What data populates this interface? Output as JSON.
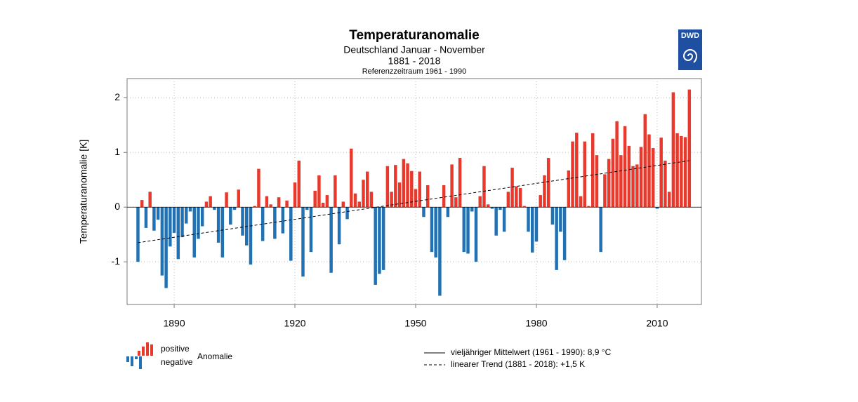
{
  "chart_data": {
    "type": "bar",
    "title": "Temperaturanomalie",
    "subtitle": "Deutschland Januar - November",
    "period": "1881 - 2018",
    "reference": "Referenzzeitraum 1961 - 1990",
    "logo": "DWD",
    "ylabel": "Temperaturanomalie [K]",
    "x": [
      1881,
      1882,
      1883,
      1884,
      1885,
      1886,
      1887,
      1888,
      1889,
      1890,
      1891,
      1892,
      1893,
      1894,
      1895,
      1896,
      1897,
      1898,
      1899,
      1900,
      1901,
      1902,
      1903,
      1904,
      1905,
      1906,
      1907,
      1908,
      1909,
      1910,
      1911,
      1912,
      1913,
      1914,
      1915,
      1916,
      1917,
      1918,
      1919,
      1920,
      1921,
      1922,
      1923,
      1924,
      1925,
      1926,
      1927,
      1928,
      1929,
      1930,
      1931,
      1932,
      1933,
      1934,
      1935,
      1936,
      1937,
      1938,
      1939,
      1940,
      1941,
      1942,
      1943,
      1944,
      1945,
      1946,
      1947,
      1948,
      1949,
      1950,
      1951,
      1952,
      1953,
      1954,
      1955,
      1956,
      1957,
      1958,
      1959,
      1960,
      1961,
      1962,
      1963,
      1964,
      1965,
      1966,
      1967,
      1968,
      1969,
      1970,
      1971,
      1972,
      1973,
      1974,
      1975,
      1976,
      1977,
      1978,
      1979,
      1980,
      1981,
      1982,
      1983,
      1984,
      1985,
      1986,
      1987,
      1988,
      1989,
      1990,
      1991,
      1992,
      1993,
      1994,
      1995,
      1996,
      1997,
      1998,
      1999,
      2000,
      2001,
      2002,
      2003,
      2004,
      2005,
      2006,
      2007,
      2008,
      2009,
      2010,
      2011,
      2012,
      2013,
      2014,
      2015,
      2016,
      2017,
      2018
    ],
    "values": [
      -1.0,
      0.13,
      -0.38,
      0.28,
      -0.43,
      -0.23,
      -1.25,
      -1.48,
      -0.72,
      -0.47,
      -0.95,
      -0.55,
      -0.3,
      -0.08,
      -0.92,
      -0.58,
      -0.35,
      0.1,
      0.2,
      -0.05,
      -0.65,
      -0.92,
      0.27,
      -0.32,
      -0.05,
      0.32,
      -0.52,
      -0.7,
      -1.05,
      0.02,
      0.7,
      -0.62,
      0.2,
      0.05,
      -0.58,
      0.18,
      -0.48,
      0.12,
      -0.98,
      0.45,
      0.85,
      -1.27,
      -0.05,
      -0.82,
      0.3,
      0.58,
      0.08,
      0.22,
      -1.2,
      0.58,
      -0.68,
      0.1,
      -0.22,
      1.07,
      0.25,
      0.1,
      0.5,
      0.65,
      0.28,
      -1.42,
      -1.22,
      -1.15,
      0.75,
      0.28,
      0.77,
      0.45,
      0.88,
      0.8,
      0.66,
      0.33,
      0.65,
      -0.18,
      0.4,
      -0.82,
      -0.92,
      -1.62,
      0.4,
      -0.18,
      0.78,
      0.18,
      0.9,
      -0.82,
      -0.85,
      -0.08,
      -1.0,
      0.2,
      0.75,
      0.05,
      -0.03,
      -0.52,
      -0.05,
      -0.45,
      0.28,
      0.72,
      0.38,
      0.35,
      0.02,
      -0.45,
      -0.83,
      -0.63,
      0.22,
      0.58,
      0.9,
      -0.32,
      -1.15,
      -0.45,
      -0.97,
      0.67,
      1.2,
      1.36,
      0.2,
      1.2,
      0.02,
      1.35,
      0.95,
      -0.82,
      0.6,
      0.88,
      1.25,
      1.57,
      0.95,
      1.48,
      1.12,
      0.75,
      0.78,
      1.1,
      1.7,
      1.33,
      1.08,
      -0.03,
      1.27,
      0.85,
      0.28,
      2.1,
      1.35,
      1.3,
      1.28,
      2.15
    ],
    "positive_color": "#e8392c",
    "negative_color": "#2271b3",
    "trend": {
      "x": [
        1881,
        2018
      ],
      "values": [
        -0.65,
        0.85
      ]
    },
    "xlim": [
      1878.3,
      2021.0
    ],
    "xticks": [
      1890,
      1920,
      1950,
      1980,
      2010
    ],
    "ylim": [
      -1.78,
      2.35
    ],
    "yticks": [
      -1,
      0,
      1,
      2
    ],
    "grid": true,
    "legend": {
      "positive": "positive",
      "negative": "negative",
      "group": "Anomalie",
      "mean": "vieljähriger Mittelwert (1961 - 1990): 8,9 °C",
      "trend": "linearer Trend (1881 - 2018): +1,5 K"
    }
  }
}
